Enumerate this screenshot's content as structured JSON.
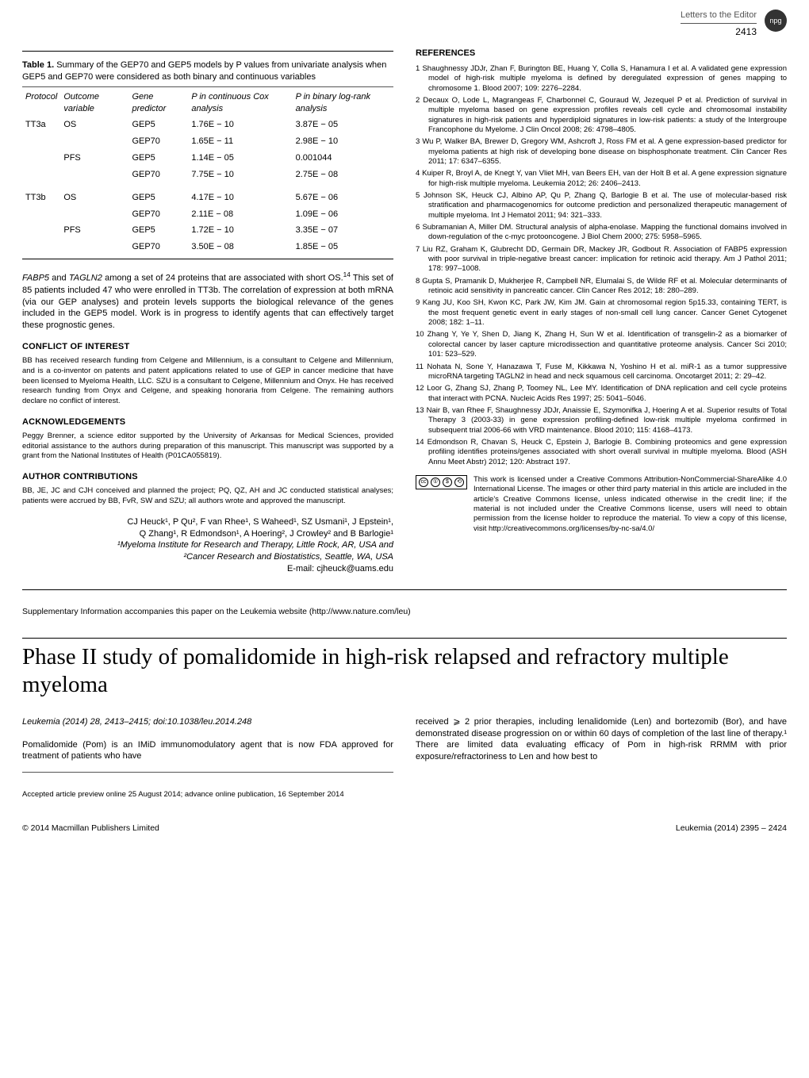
{
  "header": {
    "letters_to_editor": "Letters to the Editor",
    "npg_label": "npg",
    "page_number": "2413"
  },
  "table1": {
    "label": "Table 1.",
    "caption": "Summary of the GEP70 and GEP5 models by P values from univariate analysis when GEP5 and GEP70 were considered as both binary and continuous variables",
    "columns": [
      "Protocol",
      "Outcome variable",
      "Gene predictor",
      "P in continuous Cox analysis",
      "P in binary log-rank analysis"
    ],
    "rows": [
      [
        "TT3a",
        "OS",
        "GEP5",
        "1.76E − 10",
        "3.87E − 05"
      ],
      [
        "",
        "",
        "GEP70",
        "1.65E − 11",
        "2.98E − 10"
      ],
      [
        "",
        "PFS",
        "GEP5",
        "1.14E − 05",
        "0.001044"
      ],
      [
        "",
        "",
        "GEP70",
        "7.75E − 10",
        "2.75E − 08"
      ],
      [
        "TT3b",
        "OS",
        "GEP5",
        "4.17E − 10",
        "5.67E − 06"
      ],
      [
        "",
        "",
        "GEP70",
        "2.11E − 08",
        "1.09E − 06"
      ],
      [
        "",
        "PFS",
        "GEP5",
        "1.72E − 10",
        "3.35E − 07"
      ],
      [
        "",
        "",
        "GEP70",
        "3.50E − 08",
        "1.85E − 05"
      ]
    ]
  },
  "left": {
    "body": "FABP5 and TAGLN2 among a set of 24 proteins that are associated with short OS.¹⁴ This set of 85 patients included 47 who were enrolled in TT3b. The correlation of expression at both mRNA (via our GEP analyses) and protein levels supports the biological relevance of the genes included in the GEP5 model. Work is in progress to identify agents that can effectively target these prognostic genes.",
    "coi_head": "CONFLICT OF INTEREST",
    "coi": "BB has received research funding from Celgene and Millennium, is a consultant to Celgene and Millennium, and is a co-inventor on patents and patent applications related to use of GEP in cancer medicine that have been licensed to Myeloma Health, LLC. SZU is a consultant to Celgene, Millennium and Onyx. He has received research funding from Onyx and Celgene, and speaking honoraria from Celgene. The remaining authors declare no conflict of interest.",
    "ack_head": "ACKNOWLEDGEMENTS",
    "ack": "Peggy Brenner, a science editor supported by the University of Arkansas for Medical Sciences, provided editorial assistance to the authors during preparation of this manuscript. This manuscript was supported by a grant from the National Institutes of Health (P01CA055819).",
    "auth_head": "AUTHOR CONTRIBUTIONS",
    "auth_contrib": "BB, JE, JC and CJH conceived and planned the project; PQ, QZ, AH and JC conducted statistical analyses; patients were accrued by BB, FvR, SW and SZU; all authors wrote and approved the manuscript.",
    "authors_line1": "CJ Heuck¹, P Qu², F van Rhee¹, S Waheed¹, SZ Usmani¹, J Epstein¹,",
    "authors_line2": "Q Zhang¹, R Edmondson¹, A Hoering², J Crowley² and B Barlogie¹",
    "aff1": "¹Myeloma Institute for Research and Therapy, Little Rock, AR, USA and",
    "aff2": "²Cancer Research and Biostatistics, Seattle, WA, USA",
    "email": "E-mail: cjheuck@uams.edu"
  },
  "references_head": "REFERENCES",
  "references": [
    "Shaughnessy JDJr, Zhan F, Burington BE, Huang Y, Colla S, Hanamura I et al. A validated gene expression model of high-risk multiple myeloma is defined by deregulated expression of genes mapping to chromosome 1. Blood 2007; 109: 2276–2284.",
    "Decaux O, Lode L, Magrangeas F, Charbonnel C, Gouraud W, Jezequel P et al. Prediction of survival in multiple myeloma based on gene expression profiles reveals cell cycle and chromosomal instability signatures in high-risk patients and hyperdiploid signatures in low-risk patients: a study of the Intergroupe Francophone du Myelome. J Clin Oncol 2008; 26: 4798–4805.",
    "Wu P, Walker BA, Brewer D, Gregory WM, Ashcroft J, Ross FM et al. A gene expression-based predictor for myeloma patients at high risk of developing bone disease on bisphosphonate treatment. Clin Cancer Res 2011; 17: 6347–6355.",
    "Kuiper R, Broyl A, de Knegt Y, van Vliet MH, van Beers EH, van der Holt B et al. A gene expression signature for high-risk multiple myeloma. Leukemia 2012; 26: 2406–2413.",
    "Johnson SK, Heuck CJ, Albino AP, Qu P, Zhang Q, Barlogie B et al. The use of molecular-based risk stratification and pharmacogenomics for outcome prediction and personalized therapeutic management of multiple myeloma. Int J Hematol 2011; 94: 321–333.",
    "Subramanian A, Miller DM. Structural analysis of alpha-enolase. Mapping the functional domains involved in down-regulation of the c-myc protooncogene. J Biol Chem 2000; 275: 5958–5965.",
    "Liu RZ, Graham K, Glubrecht DD, Germain DR, Mackey JR, Godbout R. Association of FABP5 expression with poor survival in triple-negative breast cancer: implication for retinoic acid therapy. Am J Pathol 2011; 178: 997–1008.",
    "Gupta S, Pramanik D, Mukherjee R, Campbell NR, Elumalai S, de Wilde RF et al. Molecular determinants of retinoic acid sensitivity in pancreatic cancer. Clin Cancer Res 2012; 18: 280–289.",
    "Kang JU, Koo SH, Kwon KC, Park JW, Kim JM. Gain at chromosomal region 5p15.33, containing TERT, is the most frequent genetic event in early stages of non-small cell lung cancer. Cancer Genet Cytogenet 2008; 182: 1–11.",
    "Zhang Y, Ye Y, Shen D, Jiang K, Zhang H, Sun W et al. Identification of transgelin-2 as a biomarker of colorectal cancer by laser capture microdissection and quantitative proteome analysis. Cancer Sci 2010; 101: 523–529.",
    "Nohata N, Sone Y, Hanazawa T, Fuse M, Kikkawa N, Yoshino H et al. miR-1 as a tumor suppressive microRNA targeting TAGLN2 in head and neck squamous cell carcinoma. Oncotarget 2011; 2: 29–42.",
    "Loor G, Zhang SJ, Zhang P, Toomey NL, Lee MY. Identification of DNA replication and cell cycle proteins that interact with PCNA. Nucleic Acids Res 1997; 25: 5041–5046.",
    "Nair B, van Rhee F, Shaughnessy JDJr, Anaissie E, Szymonifka J, Hoering A et al. Superior results of Total Therapy 3 (2003-33) in gene expression profiling-defined low-risk multiple myeloma confirmed in subsequent trial 2006-66 with VRD maintenance. Blood 2010; 115: 4168–4173.",
    "Edmondson R, Chavan S, Heuck C, Epstein J, Barlogie B. Combining proteomics and gene expression profiling identifies proteins/genes associated with short overall survival in multiple myeloma. Blood (ASH Annu Meet Abstr) 2012; 120: Abstract 197."
  ],
  "cc_text": "This work is licensed under a Creative Commons Attribution-NonCommercial-ShareAlike 4.0 International License. The images or other third party material in this article are included in the article's Creative Commons license, unless indicated otherwise in the credit line; if the material is not included under the Creative Commons license, users will need to obtain permission from the license holder to reproduce the material. To view a copy of this license, visit http://creativecommons.org/licenses/by-nc-sa/4.0/",
  "supp": "Supplementary Information accompanies this paper on the Leukemia website (http://www.nature.com/leu)",
  "article2": {
    "title": "Phase II study of pomalidomide in high-risk relapsed and refractory multiple myeloma",
    "meta": "Leukemia (2014) 28, 2413–2415; doi:10.1038/leu.2014.248",
    "left_para": "Pomalidomide (Pom) is an IMiD immunomodulatory agent that is now FDA approved for treatment of patients who have",
    "right_para": "received ⩾ 2 prior therapies, including lenalidomide (Len) and bortezomib (Bor), and have demonstrated disease progression on or within 60 days of completion of the last line of therapy.¹ There are limited data evaluating efficacy of Pom in high-risk RRMM with prior exposure/refractoriness to Len and how best to",
    "accepted": "Accepted article preview online 25 August 2014; advance online publication, 16 September 2014"
  },
  "footer": {
    "left": "© 2014 Macmillan Publishers Limited",
    "right": "Leukemia (2014) 2395 – 2424"
  }
}
